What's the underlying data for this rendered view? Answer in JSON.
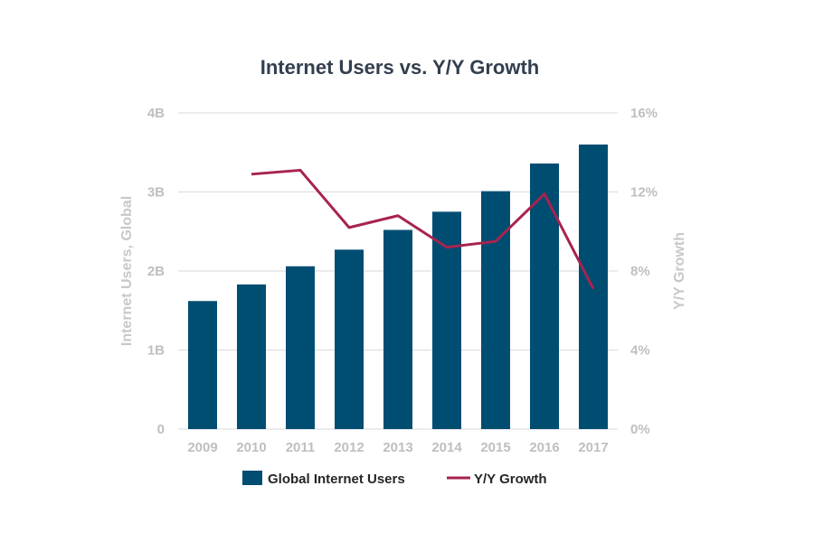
{
  "chart_data": {
    "type": "bar",
    "title": "Internet Users vs. Y/Y Growth",
    "categories": [
      "2009",
      "2010",
      "2011",
      "2012",
      "2013",
      "2014",
      "2015",
      "2016",
      "2017"
    ],
    "series": [
      {
        "name": "Global Internet Users",
        "type": "bar",
        "axis": "left",
        "values": [
          1.62,
          1.83,
          2.06,
          2.27,
          2.52,
          2.75,
          3.01,
          3.36,
          3.6
        ]
      },
      {
        "name": "Y/Y Growth",
        "type": "line",
        "axis": "right",
        "values": [
          null,
          12.9,
          13.1,
          10.2,
          10.8,
          9.2,
          9.5,
          11.9,
          7.1
        ]
      }
    ],
    "ylabel_left": "Internet Users, Global",
    "ylabel_right": "Y/Y Growth",
    "ylim_left": [
      0,
      4
    ],
    "ylim_right": [
      0,
      16
    ],
    "yticks_left": [
      "0",
      "1B",
      "2B",
      "3B",
      "4B"
    ],
    "yticks_right": [
      "0%",
      "4%",
      "8%",
      "12%",
      "16%"
    ],
    "grid": true,
    "legend_position": "bottom",
    "colors": {
      "bar": "#004d72",
      "line": "#a8234f"
    }
  }
}
